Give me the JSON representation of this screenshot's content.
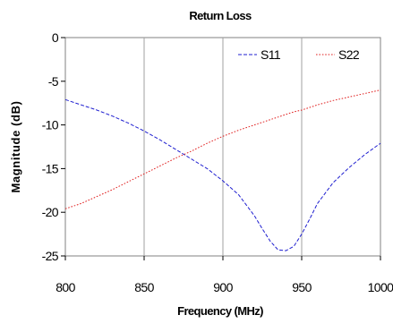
{
  "chart_data": {
    "type": "line",
    "title": "Return Loss",
    "xlabel": "Frequency (MHz)",
    "ylabel": "Magnitude (dB)",
    "xlim": [
      800,
      1000
    ],
    "ylim": [
      -25,
      0
    ],
    "xticks": [
      800,
      850,
      900,
      950,
      1000
    ],
    "xtick_labels": [
      "800",
      "850",
      "900",
      "950",
      "1000"
    ],
    "yticks": [
      0,
      -5,
      -10,
      -15,
      -20,
      -25
    ],
    "ytick_labels": [
      "0",
      "-5",
      "-10",
      "-15",
      "-20",
      "-25"
    ],
    "grid": "vertical",
    "legend": "top-right",
    "x": [
      800,
      810,
      820,
      830,
      840,
      850,
      860,
      870,
      880,
      890,
      900,
      910,
      920,
      925,
      930,
      935,
      940,
      945,
      950,
      955,
      960,
      970,
      980,
      990,
      1000
    ],
    "series": [
      {
        "name": "S11",
        "color": "#1f1fd0",
        "dash": "dashed",
        "values": [
          -7.1,
          -7.7,
          -8.3,
          -9.0,
          -9.8,
          -10.7,
          -11.7,
          -12.8,
          -13.9,
          -15.0,
          -16.4,
          -18.0,
          -20.4,
          -21.9,
          -23.3,
          -24.3,
          -24.4,
          -23.9,
          -22.5,
          -20.8,
          -19.0,
          -16.6,
          -14.9,
          -13.4,
          -12.1
        ]
      },
      {
        "name": "S22",
        "color": "#e02020",
        "dash": "dotted",
        "values": [
          -19.6,
          -19.0,
          -18.2,
          -17.4,
          -16.5,
          -15.6,
          -14.7,
          -13.8,
          -13.0,
          -12.1,
          -11.3,
          -10.6,
          -10.0,
          -9.7,
          -9.4,
          -9.1,
          -8.8,
          -8.5,
          -8.3,
          -8.0,
          -7.7,
          -7.2,
          -6.8,
          -6.4,
          -6.0
        ]
      }
    ]
  }
}
